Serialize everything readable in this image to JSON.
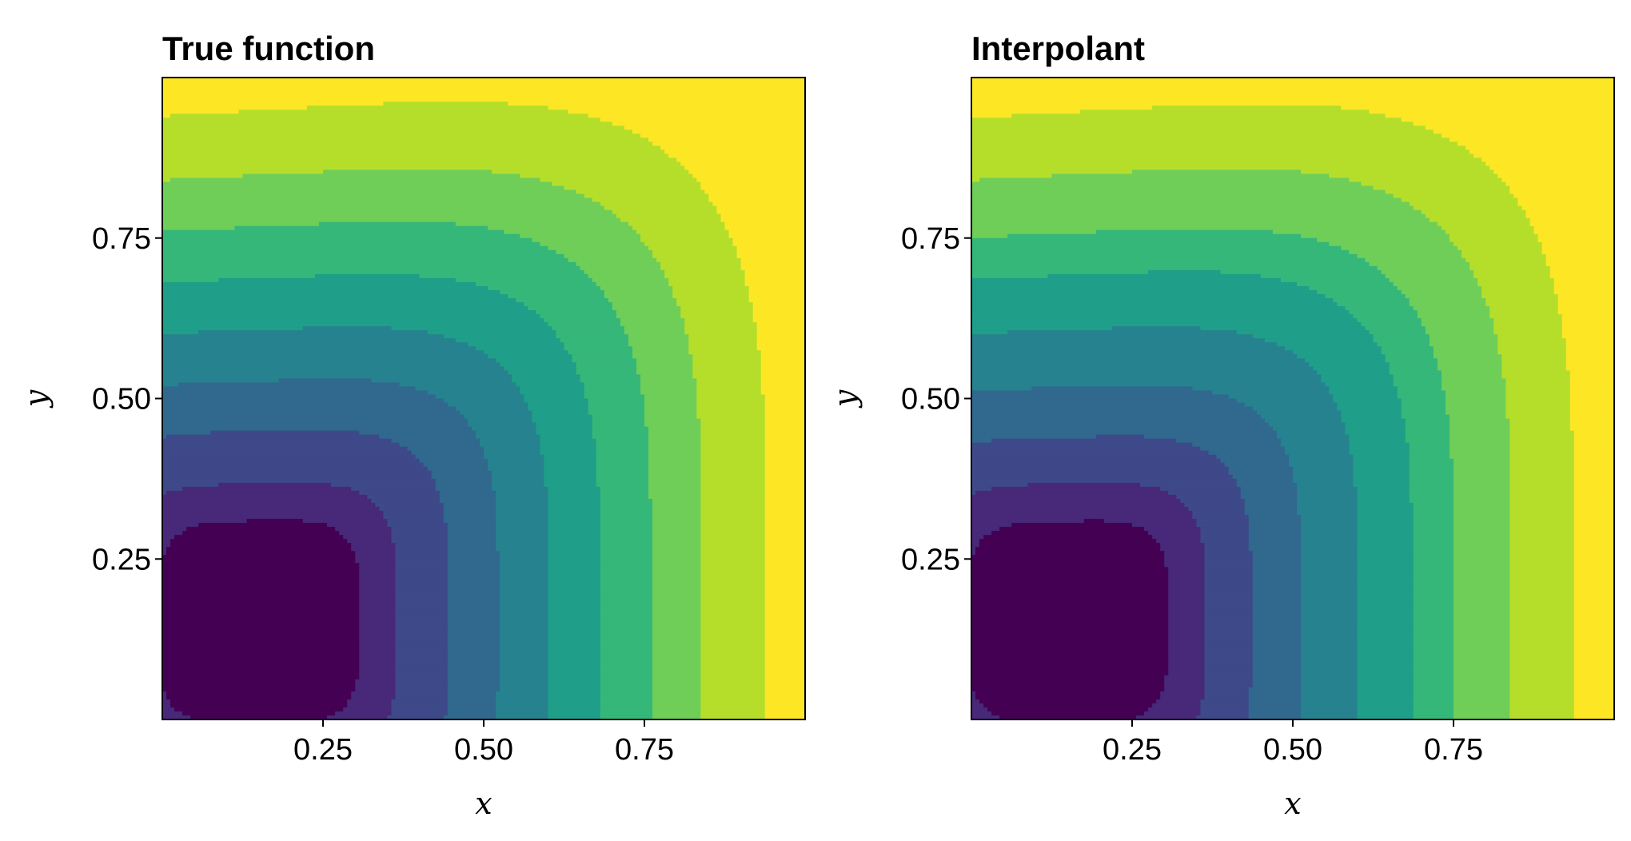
{
  "chart_data": [
    {
      "type": "contour",
      "title": "True function",
      "xlabel": "x",
      "ylabel": "y",
      "xlim": [
        0,
        1
      ],
      "ylim": [
        0,
        1
      ],
      "xticks": [
        "0.25",
        "0.50",
        "0.75"
      ],
      "yticks": [
        "0.25",
        "0.50",
        "0.75"
      ],
      "grid": false,
      "colormap": "viridis",
      "level_colors": [
        "#440154",
        "#482878",
        "#3e4989",
        "#31688e",
        "#26828e",
        "#1f9e89",
        "#35b779",
        "#6ece58",
        "#b5de2b",
        "#fde725"
      ],
      "minimum_location": [
        0.15,
        0.15
      ],
      "contour_crossings_at_y0": [
        0.25,
        0.35,
        0.44,
        0.52,
        0.6,
        0.68,
        0.76,
        0.84,
        0.94
      ]
    },
    {
      "type": "contour",
      "title": "Interpolant",
      "xlabel": "x",
      "ylabel": "y",
      "xlim": [
        0,
        1
      ],
      "ylim": [
        0,
        1
      ],
      "xticks": [
        "0.25",
        "0.50",
        "0.75"
      ],
      "yticks": [
        "0.25",
        "0.50",
        "0.75"
      ],
      "grid": false,
      "colormap": "viridis",
      "level_colors": [
        "#440154",
        "#482878",
        "#3e4989",
        "#31688e",
        "#26828e",
        "#1f9e89",
        "#35b779",
        "#6ece58",
        "#b5de2b",
        "#fde725"
      ],
      "minimum_location": [
        0.15,
        0.15
      ],
      "contour_crossings_at_y0": [
        0.247,
        0.35,
        0.43,
        0.51,
        0.6,
        0.685,
        0.75,
        0.84,
        0.937
      ]
    }
  ]
}
